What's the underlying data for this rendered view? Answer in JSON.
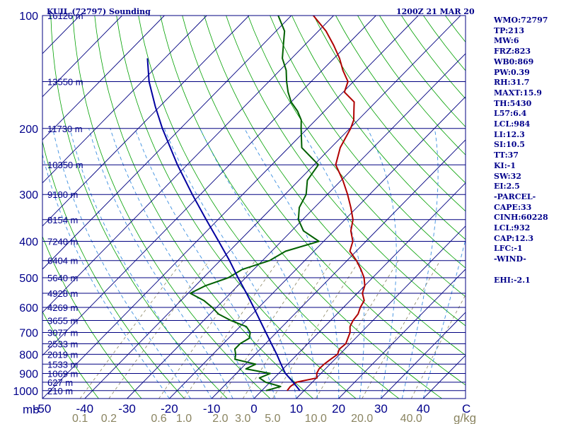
{
  "chart_data": {
    "type": "skew-t",
    "title": "KUIL (72797) Sounding",
    "time": "1200Z 21 MAR 20",
    "pressure_unit": "mb",
    "mixing_ratio_unit": "g/kg",
    "temperature_unit": "C",
    "pressure_ticks": [
      100,
      200,
      300,
      400,
      500,
      600,
      700,
      800,
      900,
      1000
    ],
    "pressure_range": [
      1050,
      100
    ],
    "temperature_ticks": [
      -50,
      -40,
      -30,
      -20,
      -10,
      0,
      10,
      20,
      30,
      40
    ],
    "temperature_range_at_bottom": [
      -50,
      50
    ],
    "mixing_ratio_ticks": [
      "0.1",
      "0.2",
      "0.6",
      "1.0",
      "2.0",
      "3.0",
      "5.0",
      "10.0",
      "20.0",
      "40.0"
    ],
    "height_labels": [
      {
        "p": 100,
        "text": "16126 m"
      },
      {
        "p": 150,
        "text": "13550 m"
      },
      {
        "p": 200,
        "text": "11730 m"
      },
      {
        "p": 250,
        "text": "10350 m"
      },
      {
        "p": 300,
        "text": "9180 m"
      },
      {
        "p": 350,
        "text": "8154 m"
      },
      {
        "p": 400,
        "text": "7240 m"
      },
      {
        "p": 450,
        "text": "6404 m"
      },
      {
        "p": 500,
        "text": "5640 m"
      },
      {
        "p": 550,
        "text": "4928 m"
      },
      {
        "p": 600,
        "text": "4269 m"
      },
      {
        "p": 650,
        "text": "3655 m"
      },
      {
        "p": 700,
        "text": "3077 m"
      },
      {
        "p": 750,
        "text": "2533 m"
      },
      {
        "p": 800,
        "text": "2019 m"
      },
      {
        "p": 850,
        "text": "1533 m"
      },
      {
        "p": 900,
        "text": "1069 m"
      },
      {
        "p": 950,
        "text": "627 m"
      },
      {
        "p": 1000,
        "text": "210 m"
      }
    ],
    "series": [
      {
        "color": "#b00000",
        "points": [
          [
            1000,
            6.0
          ],
          [
            975,
            5.8
          ],
          [
            950,
            6.2
          ],
          [
            925,
            10.1
          ],
          [
            900,
            9.0
          ],
          [
            875,
            8.5
          ],
          [
            850,
            8.6
          ],
          [
            825,
            9.0
          ],
          [
            800,
            9.5
          ],
          [
            775,
            8.7
          ],
          [
            750,
            9.0
          ],
          [
            725,
            8.2
          ],
          [
            700,
            7.4
          ],
          [
            675,
            6.0
          ],
          [
            650,
            5.3
          ],
          [
            625,
            5.0
          ],
          [
            600,
            4.0
          ],
          [
            575,
            3.3
          ],
          [
            550,
            1.2
          ],
          [
            525,
            0.0
          ],
          [
            500,
            -2.0
          ],
          [
            475,
            -4.7
          ],
          [
            450,
            -7.8
          ],
          [
            425,
            -11.5
          ],
          [
            400,
            -13.1
          ],
          [
            375,
            -16.0
          ],
          [
            350,
            -18.1
          ],
          [
            325,
            -21.4
          ],
          [
            300,
            -25.2
          ],
          [
            275,
            -29.6
          ],
          [
            250,
            -34.9
          ],
          [
            225,
            -37.8
          ],
          [
            200,
            -39.8
          ],
          [
            190,
            -41.0
          ],
          [
            180,
            -43.0
          ],
          [
            170,
            -45.1
          ],
          [
            160,
            -49.7
          ],
          [
            150,
            -51.3
          ],
          [
            140,
            -55.1
          ],
          [
            130,
            -58.7
          ],
          [
            120,
            -63.1
          ],
          [
            110,
            -68.2
          ],
          [
            100,
            -74.8
          ],
          [
            93,
            -79.2
          ]
        ]
      },
      {
        "color": "#006000",
        "points": [
          [
            1000,
            1.0
          ],
          [
            975,
            3.5
          ],
          [
            950,
            -1.0
          ],
          [
            925,
            -3.5
          ],
          [
            900,
            -2.0
          ],
          [
            875,
            -8.8
          ],
          [
            850,
            -7.6
          ],
          [
            825,
            -13.6
          ],
          [
            800,
            -14.6
          ],
          [
            775,
            -16.0
          ],
          [
            750,
            -16.0
          ],
          [
            725,
            -15.1
          ],
          [
            700,
            -16.2
          ],
          [
            675,
            -18.5
          ],
          [
            650,
            -23.6
          ],
          [
            625,
            -28.0
          ],
          [
            600,
            -31.0
          ],
          [
            575,
            -34.6
          ],
          [
            550,
            -39.5
          ],
          [
            525,
            -37.6
          ],
          [
            500,
            -34.1
          ],
          [
            475,
            -32.7
          ],
          [
            450,
            -28.3
          ],
          [
            425,
            -26.7
          ],
          [
            400,
            -21.1
          ],
          [
            375,
            -27.2
          ],
          [
            350,
            -31.0
          ],
          [
            325,
            -33.6
          ],
          [
            300,
            -35.0
          ],
          [
            275,
            -38.0
          ],
          [
            250,
            -39.0
          ],
          [
            225,
            -46.9
          ],
          [
            200,
            -51.5
          ],
          [
            190,
            -53.4
          ],
          [
            180,
            -56.3
          ],
          [
            170,
            -60.0
          ],
          [
            160,
            -63.0
          ],
          [
            150,
            -65.8
          ],
          [
            140,
            -68.5
          ],
          [
            130,
            -72.2
          ],
          [
            120,
            -75.0
          ],
          [
            110,
            -78.0
          ],
          [
            100,
            -83.1
          ],
          [
            93,
            -85.3
          ]
        ]
      },
      {
        "color": "#0000a0",
        "points": [
          [
            1000,
            9.0
          ],
          [
            950,
            5.5
          ],
          [
            900,
            1.6
          ],
          [
            850,
            -1.6
          ],
          [
            800,
            -4.9
          ],
          [
            750,
            -8.6
          ],
          [
            700,
            -12.5
          ],
          [
            650,
            -16.7
          ],
          [
            600,
            -21.2
          ],
          [
            550,
            -26.2
          ],
          [
            500,
            -31.8
          ],
          [
            450,
            -37.8
          ],
          [
            400,
            -44.8
          ],
          [
            350,
            -52.8
          ],
          [
            300,
            -61.9
          ],
          [
            250,
            -72.3
          ],
          [
            200,
            -84.3
          ],
          [
            175,
            -91.0
          ],
          [
            150,
            -98.3
          ],
          [
            130,
            -104.1
          ]
        ]
      }
    ]
  },
  "indices": [
    "WMO:72797",
    "TP:213",
    "MW:6",
    "FRZ:823",
    "WB0:869",
    "PW:0.39",
    "RH:31.7",
    "MAXT:15.9",
    "TH:5430",
    "L57:6.4",
    "LCL:984",
    "LI:12.3",
    "SI:10.5",
    "TT:37",
    "KI:-1",
    "SW:32",
    "EI:2.5",
    "-PARCEL-",
    "CAPE:33",
    "CINH:60228",
    "LCL:932",
    "CAP:12.3",
    "LFC:-1",
    "-WIND-",
    "",
    "EHI:-2.1"
  ],
  "colors": {
    "temperature": "#b00000",
    "dewpoint": "#006000",
    "parcel": "#0000a0",
    "isobar": "#000080",
    "isotherm": "#000080",
    "dry_adiabat": "#00a000",
    "moist_adiabat": "#3c8fe0",
    "mixing_ratio": "#8a8460",
    "labels": "#00008b"
  }
}
